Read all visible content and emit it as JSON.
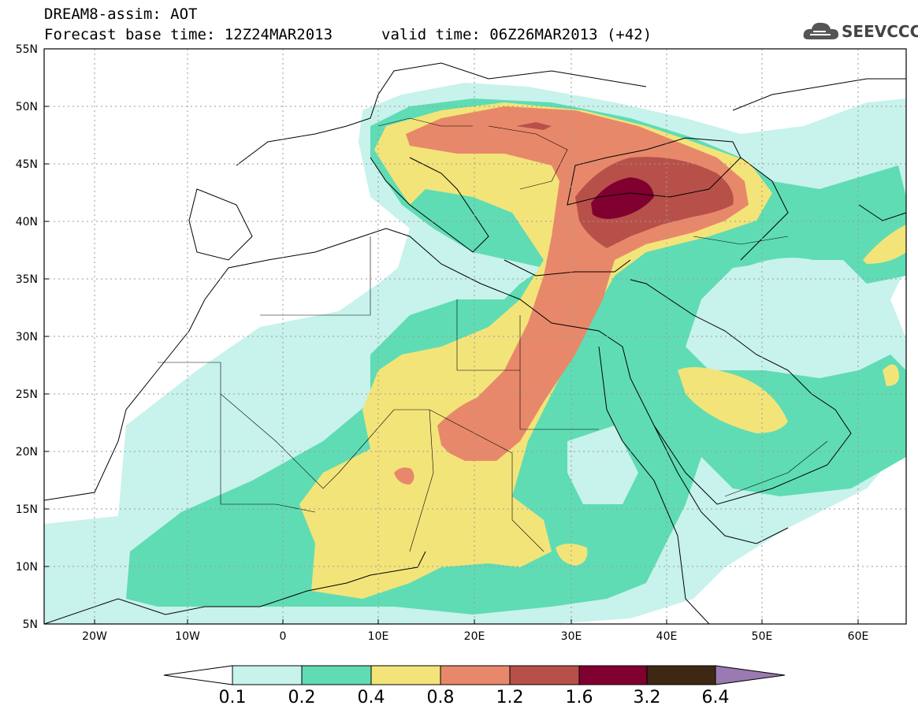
{
  "header": {
    "line1": "DREAM8-assim: AOT",
    "line2": "Forecast base time: 12Z24MAR2013",
    "line3": "valid time: 06Z26MAR2013 (+42)"
  },
  "logo": {
    "text": "SEEVCCC",
    "icon": "cloud-icon"
  },
  "map": {
    "lat_labels": [
      "55N",
      "50N",
      "45N",
      "40N",
      "35N",
      "30N",
      "25N",
      "20N",
      "15N",
      "10N",
      "5N"
    ],
    "lon_labels": [
      "20W",
      "10W",
      "0",
      "10E",
      "20E",
      "30E",
      "40E",
      "50E",
      "60E"
    ],
    "extent": {
      "lon_min": -25,
      "lon_max": 65,
      "lat_min": 5,
      "lat_max": 55
    }
  },
  "colorbar": {
    "labels": [
      "0.1",
      "0.2",
      "0.4",
      "0.8",
      "1.2",
      "1.6",
      "3.2",
      "6.4"
    ],
    "colors": [
      "#ffffff",
      "#c8f2ec",
      "#5fdcb4",
      "#f3e47a",
      "#e8886a",
      "#b8504a",
      "#800030",
      "#3e2814",
      "#9a7ab0"
    ]
  }
}
